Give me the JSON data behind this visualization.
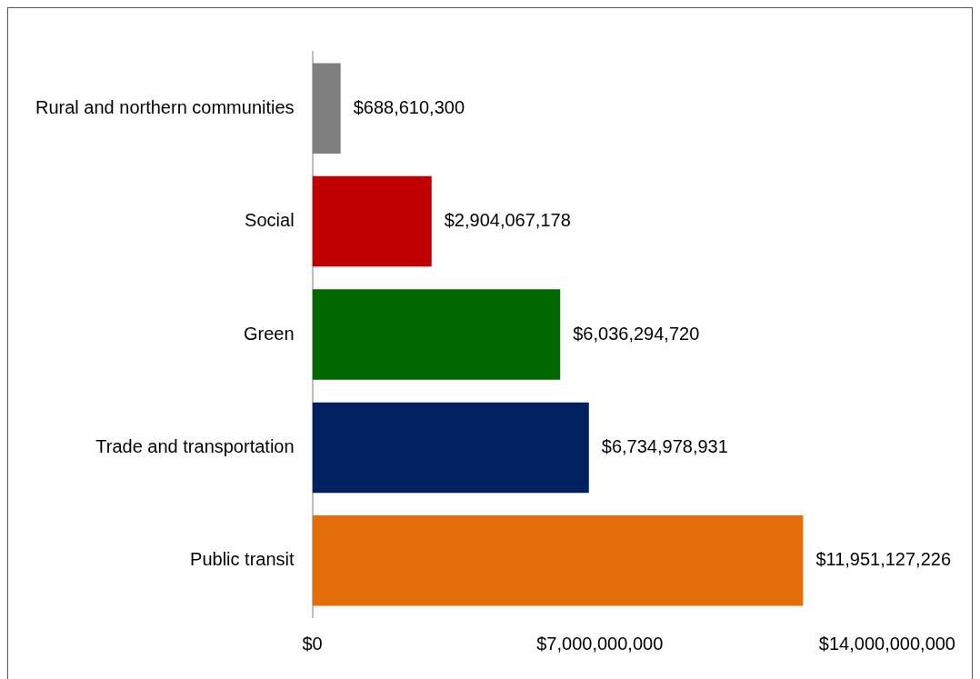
{
  "chart_data": {
    "type": "bar",
    "orientation": "horizontal",
    "categories": [
      "Rural and northern communities",
      "Social",
      "Green",
      "Trade and transportation",
      "Public transit"
    ],
    "values": [
      688610300,
      2904067178,
      6036294720,
      6734978931,
      11951127226
    ],
    "colors": [
      "#7f7f7f",
      "#c00000",
      "#006600",
      "#002060",
      "#e46c0a"
    ],
    "value_labels": [
      "$688,610,300",
      "$2,904,067,178",
      "$6,036,294,720",
      "$6,734,978,931",
      "$11,951,127,226"
    ],
    "xlim": [
      0,
      14000000000
    ],
    "xticks": [
      {
        "value": 0,
        "label": "$0"
      },
      {
        "value": 7000000000,
        "label": "$7,000,000,000"
      },
      {
        "value": 14000000000,
        "label": "$14,000,000,000"
      }
    ],
    "grid": false,
    "legend": false
  }
}
